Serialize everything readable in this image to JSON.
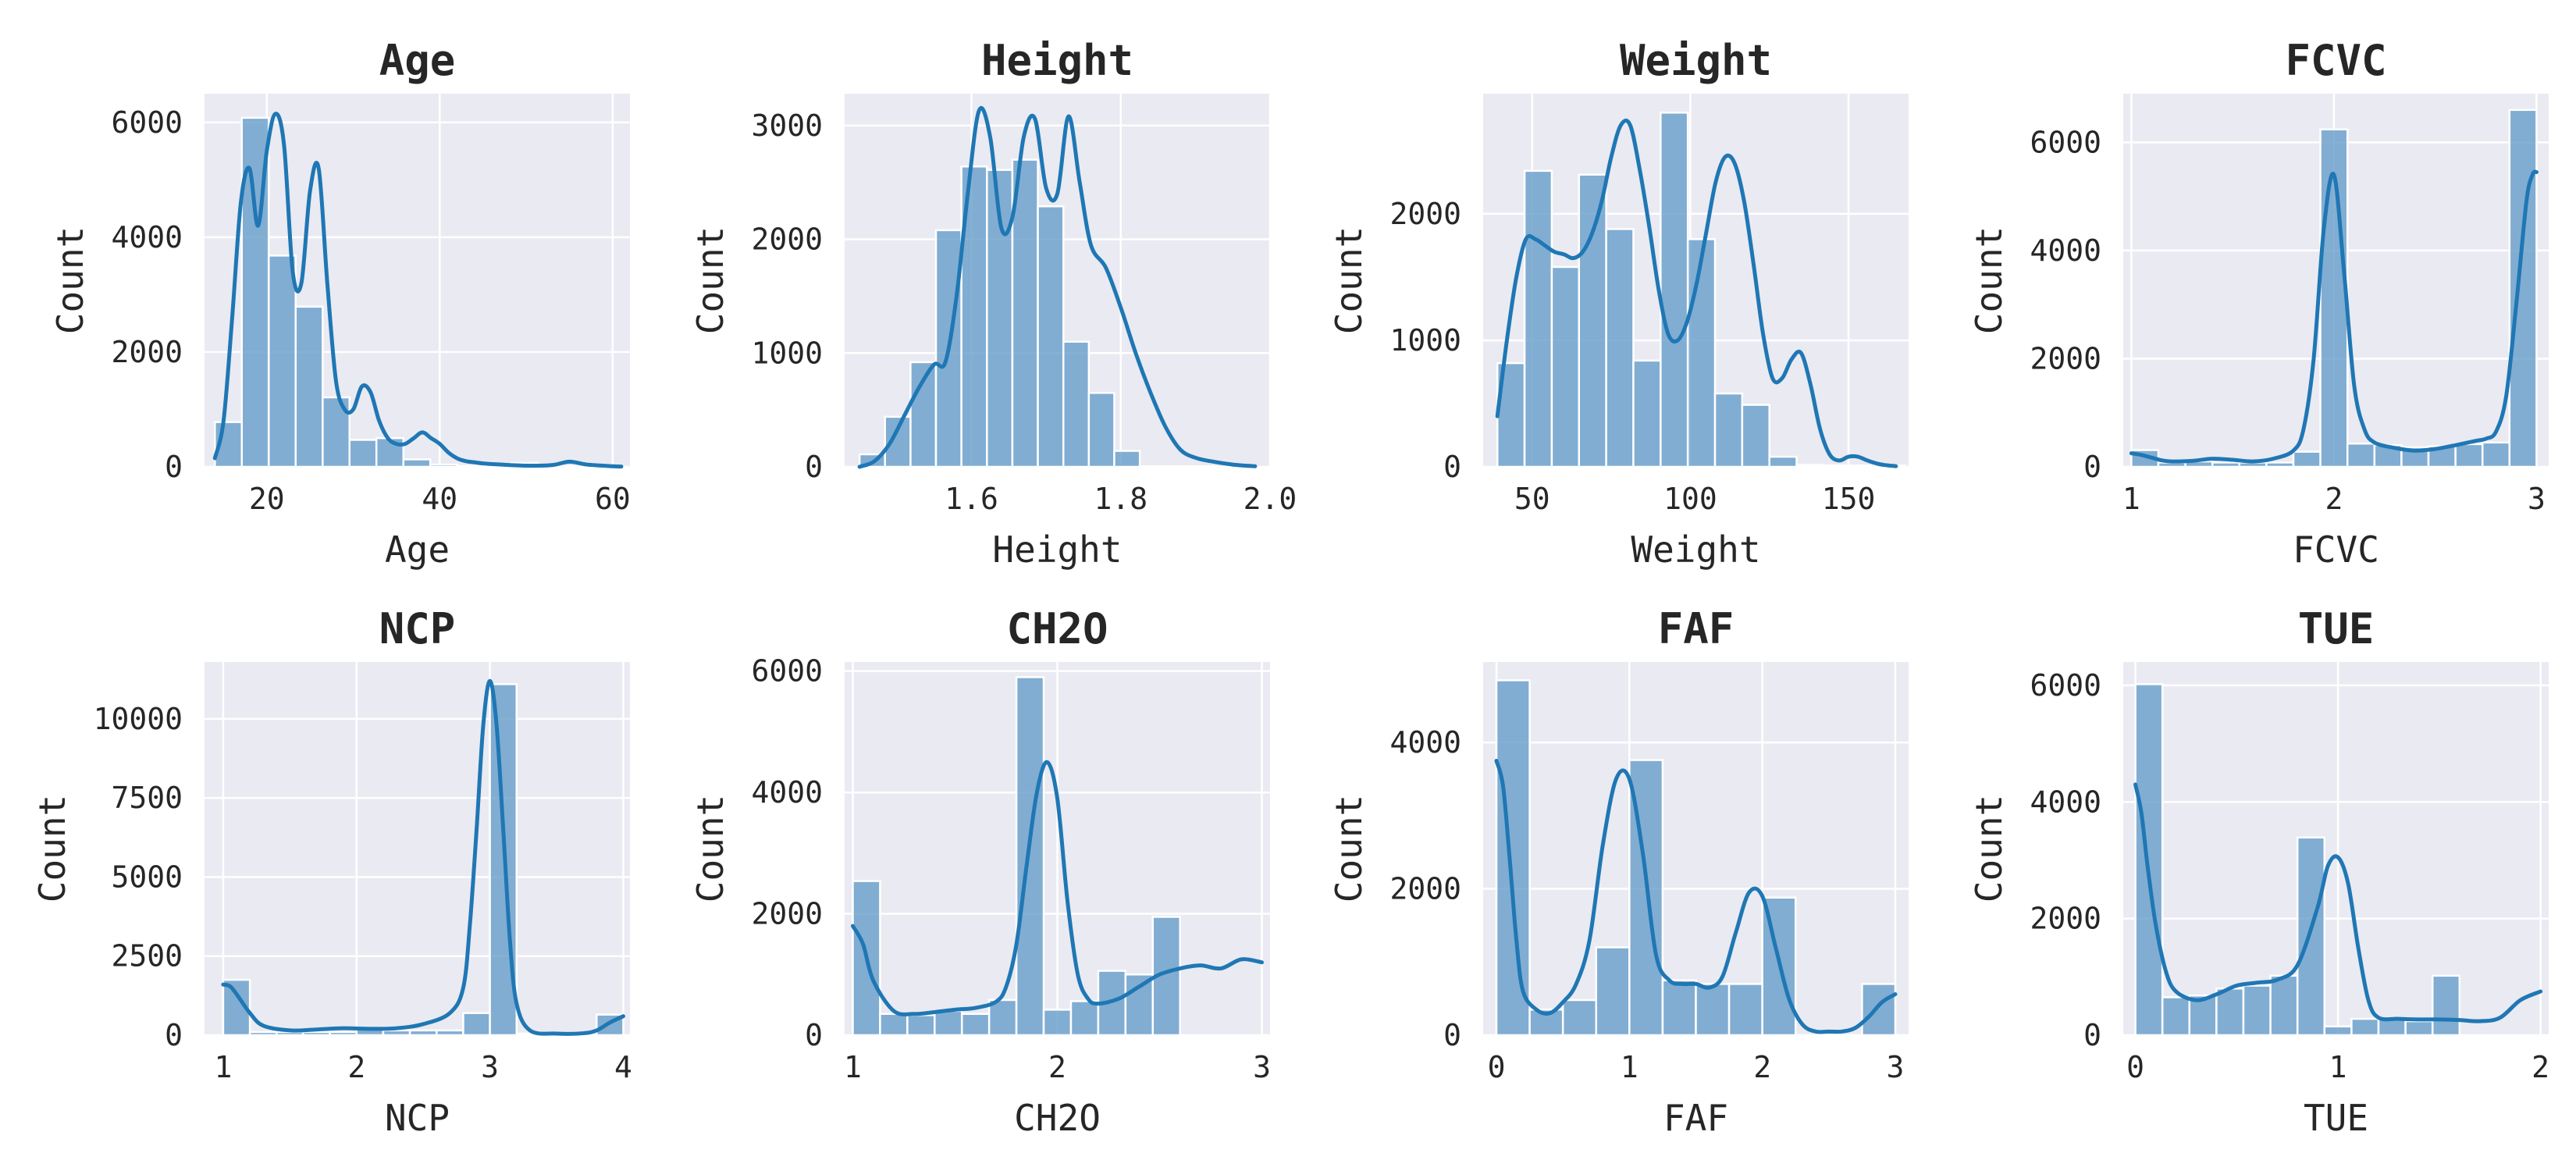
{
  "chart_data": [
    {
      "type": "bar",
      "title": "Age",
      "xlabel": "Age",
      "ylabel": "Count",
      "xlim": [
        12.8,
        62.0
      ],
      "ylim": [
        0,
        6500
      ],
      "xticks": [
        20,
        40,
        60
      ],
      "yticks": [
        0,
        2000,
        4000,
        6000
      ],
      "bin_edges": [
        14,
        17.11,
        20.23,
        23.34,
        26.46,
        29.57,
        32.68,
        35.8,
        38.91,
        42.02,
        45.14,
        48.25,
        51.36,
        54.48,
        57.59,
        60.71
      ],
      "counts": [
        780,
        6080,
        3680,
        2790,
        1210,
        470,
        500,
        130,
        40,
        15,
        15,
        70,
        10,
        10,
        20
      ],
      "kde": {
        "x": [
          14,
          15,
          16,
          17,
          18,
          19,
          20,
          21,
          22,
          23,
          24,
          25,
          26,
          27,
          28,
          29,
          30,
          31,
          32,
          33,
          34,
          35,
          36,
          37,
          38,
          39,
          40,
          41,
          42,
          43,
          44,
          45,
          47,
          50,
          53,
          55,
          57,
          60,
          61
        ],
        "y": [
          150,
          800,
          2600,
          4600,
          5200,
          4200,
          5500,
          6150,
          5600,
          3400,
          3200,
          4800,
          5200,
          3200,
          1500,
          1000,
          1000,
          1400,
          1300,
          800,
          500,
          400,
          400,
          500,
          600,
          500,
          400,
          250,
          150,
          100,
          80,
          60,
          40,
          20,
          30,
          90,
          40,
          10,
          5
        ]
      }
    },
    {
      "type": "bar",
      "title": "Height",
      "xlabel": "Height",
      "ylabel": "Count",
      "xlim": [
        1.43,
        2.0
      ],
      "ylim": [
        0,
        3280
      ],
      "xticks": [
        1.6,
        1.8,
        2.0
      ],
      "xtick_labels": [
        "1.6",
        "1.8",
        "2.0"
      ],
      "yticks": [
        0,
        1000,
        2000,
        3000
      ],
      "bin_edges": [
        1.45,
        1.4841,
        1.5183,
        1.5524,
        1.5865,
        1.6207,
        1.6548,
        1.6889,
        1.7231,
        1.7572,
        1.7913,
        1.8255,
        1.8596,
        1.8937,
        1.9279
      ],
      "counts": [
        110,
        440,
        920,
        2080,
        2640,
        2610,
        2700,
        2290,
        1100,
        650,
        140,
        5,
        5,
        5
      ],
      "kde": {
        "x": [
          1.45,
          1.47,
          1.49,
          1.51,
          1.53,
          1.55,
          1.565,
          1.58,
          1.595,
          1.61,
          1.625,
          1.64,
          1.655,
          1.67,
          1.685,
          1.7,
          1.715,
          1.73,
          1.745,
          1.76,
          1.78,
          1.8,
          1.82,
          1.84,
          1.86,
          1.88,
          1.9,
          1.92,
          1.95,
          1.98
        ],
        "y": [
          0,
          50,
          200,
          450,
          700,
          900,
          920,
          1500,
          2400,
          3130,
          2900,
          2100,
          2200,
          2900,
          3060,
          2450,
          2400,
          3080,
          2500,
          1950,
          1750,
          1400,
          1000,
          650,
          350,
          150,
          80,
          50,
          20,
          5
        ]
      }
    },
    {
      "type": "bar",
      "title": "Weight",
      "xlabel": "Weight",
      "ylabel": "Count",
      "xlim": [
        34.5,
        169
      ],
      "ylim": [
        0,
        2950
      ],
      "xticks": [
        50,
        100,
        150
      ],
      "yticks": [
        0,
        1000,
        2000
      ],
      "bin_edges": [
        39,
        47.6,
        56.2,
        64.8,
        73.4,
        82,
        90.6,
        99.2,
        107.8,
        116.4,
        125,
        133.6,
        142.2,
        150.8,
        159.4,
        168
      ],
      "counts": [
        820,
        2340,
        1580,
        2310,
        1880,
        840,
        2800,
        1800,
        580,
        490,
        80,
        15,
        10,
        10,
        10
      ],
      "kde": {
        "x": [
          39,
          42,
          45,
          48,
          51,
          54,
          57,
          60,
          63,
          66,
          69,
          72,
          75,
          78,
          81,
          84,
          87,
          90,
          93,
          96,
          99,
          102,
          105,
          108,
          111,
          114,
          117,
          120,
          123,
          126,
          129,
          132,
          135,
          138,
          141,
          144,
          147,
          150,
          153,
          156,
          160,
          165
        ],
        "y": [
          400,
          1000,
          1500,
          1800,
          1800,
          1750,
          1700,
          1680,
          1650,
          1700,
          1850,
          2100,
          2450,
          2700,
          2700,
          2350,
          1900,
          1400,
          1050,
          1000,
          1150,
          1450,
          1850,
          2250,
          2450,
          2400,
          2100,
          1600,
          1050,
          700,
          700,
          850,
          900,
          650,
          300,
          100,
          50,
          80,
          80,
          50,
          20,
          5
        ]
      }
    },
    {
      "type": "bar",
      "title": "FCVC",
      "xlabel": "FCVC",
      "ylabel": "Count",
      "xlim": [
        0.96,
        3.06
      ],
      "ylim": [
        0,
        6900
      ],
      "xticks": [
        1,
        2,
        3
      ],
      "yticks": [
        0,
        2000,
        4000,
        6000
      ],
      "bin_edges": [
        1,
        1.1333,
        1.2667,
        1.4,
        1.5333,
        1.6667,
        1.8,
        1.9333,
        2.0667,
        2.2,
        2.3333,
        2.4667,
        2.6,
        2.7333,
        2.8667,
        3.0
      ],
      "counts": [
        310,
        80,
        100,
        80,
        80,
        80,
        280,
        6240,
        430,
        400,
        360,
        380,
        420,
        450,
        6600
      ],
      "kde": {
        "x": [
          1,
          1.05,
          1.1,
          1.15,
          1.2,
          1.3,
          1.4,
          1.5,
          1.6,
          1.7,
          1.8,
          1.85,
          1.9,
          1.95,
          2.0,
          2.05,
          2.1,
          2.15,
          2.2,
          2.3,
          2.4,
          2.5,
          2.6,
          2.7,
          2.75,
          2.8,
          2.85,
          2.9,
          2.95,
          2.98,
          3.0
        ],
        "y": [
          250,
          220,
          170,
          120,
          100,
          110,
          150,
          130,
          100,
          150,
          300,
          700,
          2000,
          4400,
          5400,
          3600,
          1500,
          700,
          450,
          350,
          300,
          330,
          400,
          480,
          520,
          650,
          1300,
          3000,
          4900,
          5400,
          5450
        ]
      }
    },
    {
      "type": "bar",
      "title": "NCP",
      "xlabel": "NCP",
      "ylabel": "Count",
      "xlim": [
        0.86,
        4.05
      ],
      "ylim": [
        0,
        11800
      ],
      "xticks": [
        1,
        2,
        3,
        4
      ],
      "yticks": [
        0,
        2500,
        5000,
        7500,
        10000
      ],
      "bin_edges": [
        1,
        1.2,
        1.4,
        1.6,
        1.8,
        2.0,
        2.2,
        2.4,
        2.6,
        2.8,
        3.0,
        3.2,
        3.4,
        3.6,
        3.8,
        4.0
      ],
      "counts": [
        1750,
        100,
        100,
        100,
        100,
        200,
        150,
        150,
        150,
        700,
        11100,
        50,
        50,
        50,
        650
      ],
      "kde": {
        "x": [
          1.0,
          1.05,
          1.1,
          1.2,
          1.3,
          1.5,
          1.7,
          1.9,
          2.1,
          2.3,
          2.5,
          2.7,
          2.8,
          2.85,
          2.9,
          2.95,
          3.0,
          3.05,
          3.1,
          3.15,
          3.2,
          3.3,
          3.5,
          3.7,
          3.8,
          3.9,
          4.0
        ],
        "y": [
          1600,
          1550,
          1300,
          700,
          300,
          150,
          180,
          220,
          200,
          220,
          350,
          700,
          1500,
          3500,
          6500,
          9800,
          11200,
          9800,
          6500,
          3000,
          1000,
          150,
          50,
          60,
          150,
          400,
          600
        ]
      }
    },
    {
      "type": "bar",
      "title": "CH2O",
      "xlabel": "CH2O",
      "ylabel": "Count",
      "xlim": [
        0.96,
        3.04
      ],
      "ylim": [
        0,
        6150
      ],
      "xticks": [
        1,
        2,
        3
      ],
      "yticks": [
        0,
        2000,
        4000,
        6000
      ],
      "bin_edges": [
        1,
        1.1333,
        1.2667,
        1.4,
        1.5333,
        1.6667,
        1.8,
        1.9333,
        2.0667,
        2.2,
        2.3333,
        2.4667,
        2.6,
        2.7333,
        2.8667,
        3.0
      ],
      "counts": [
        2540,
        350,
        330,
        400,
        350,
        580,
        5900,
        420,
        560,
        1060,
        1000,
        1950,
        0,
        0,
        0
      ],
      "kde": {
        "x": [
          1.0,
          1.05,
          1.1,
          1.2,
          1.3,
          1.4,
          1.5,
          1.6,
          1.7,
          1.75,
          1.8,
          1.85,
          1.9,
          1.95,
          2.0,
          2.05,
          2.1,
          2.15,
          2.2,
          2.3,
          2.4,
          2.5,
          2.6,
          2.7,
          2.8,
          2.9,
          3.0
        ],
        "y": [
          1800,
          1500,
          900,
          400,
          350,
          380,
          420,
          450,
          550,
          800,
          1500,
          2800,
          4000,
          4500,
          3900,
          2200,
          1000,
          600,
          520,
          600,
          800,
          1000,
          1100,
          1150,
          1100,
          1250,
          1200
        ]
      }
    },
    {
      "type": "bar",
      "title": "FAF",
      "xlabel": "FAF",
      "ylabel": "Count",
      "xlim": [
        -0.1,
        3.1
      ],
      "ylim": [
        0,
        5100
      ],
      "xticks": [
        0,
        1,
        2,
        3
      ],
      "yticks": [
        0,
        2000,
        4000
      ],
      "bin_edges": [
        0,
        0.25,
        0.5,
        0.75,
        1.0,
        1.25,
        1.5,
        1.75,
        2.0,
        2.25,
        2.5,
        2.75,
        3.0
      ],
      "counts": [
        4850,
        350,
        480,
        1200,
        3760,
        750,
        700,
        700,
        1880,
        0,
        0,
        700
      ],
      "kde": {
        "x": [
          0.0,
          0.05,
          0.1,
          0.15,
          0.2,
          0.3,
          0.4,
          0.5,
          0.6,
          0.7,
          0.8,
          0.9,
          1.0,
          1.1,
          1.2,
          1.3,
          1.4,
          1.5,
          1.6,
          1.7,
          1.8,
          1.9,
          2.0,
          2.1,
          2.2,
          2.3,
          2.4,
          2.5,
          2.6,
          2.7,
          2.8,
          2.9,
          3.0
        ],
        "y": [
          3750,
          3400,
          2400,
          1300,
          600,
          350,
          300,
          450,
          700,
          1300,
          2600,
          3500,
          3500,
          2500,
          1100,
          750,
          700,
          700,
          650,
          800,
          1400,
          1950,
          1900,
          1200,
          500,
          150,
          50,
          50,
          50,
          100,
          250,
          450,
          560
        ]
      }
    },
    {
      "type": "bar",
      "title": "TUE",
      "xlabel": "TUE",
      "ylabel": "Count",
      "xlim": [
        -0.06,
        2.04
      ],
      "ylim": [
        0,
        6400
      ],
      "xticks": [
        0,
        1,
        2
      ],
      "yticks": [
        0,
        2000,
        4000,
        6000
      ],
      "bin_edges": [
        0,
        0.1333,
        0.2667,
        0.4,
        0.5333,
        0.6667,
        0.8,
        0.9333,
        1.0667,
        1.2,
        1.3333,
        1.4667,
        1.6,
        1.7333,
        1.8667,
        2.0
      ],
      "counts": [
        6020,
        650,
        680,
        800,
        850,
        1020,
        3390,
        150,
        280,
        280,
        240,
        1020,
        0,
        0,
        0
      ],
      "kde": {
        "x": [
          0.0,
          0.03,
          0.06,
          0.1,
          0.15,
          0.2,
          0.3,
          0.4,
          0.5,
          0.6,
          0.7,
          0.8,
          0.9,
          0.95,
          1.0,
          1.05,
          1.1,
          1.15,
          1.2,
          1.3,
          1.4,
          1.5,
          1.6,
          1.7,
          1.8,
          1.9,
          2.0
        ],
        "y": [
          4300,
          3800,
          2900,
          1900,
          1100,
          750,
          600,
          700,
          850,
          900,
          950,
          1200,
          2200,
          2900,
          3050,
          2600,
          1500,
          600,
          300,
          280,
          270,
          270,
          260,
          240,
          300,
          600,
          750
        ]
      }
    }
  ]
}
